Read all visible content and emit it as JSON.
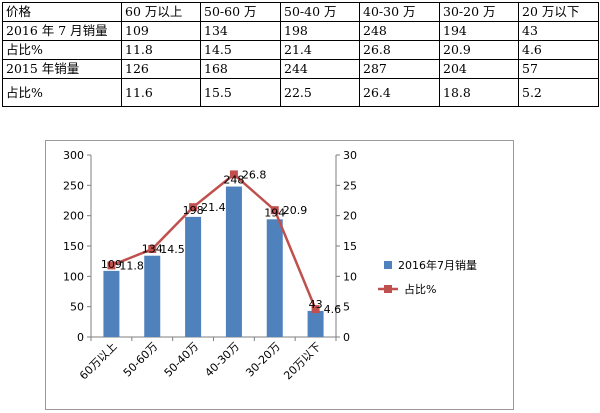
{
  "table": {
    "headers": [
      "价格",
      "60 万以上",
      "50-60 万",
      "50-40 万",
      "40-30 万",
      "30-20 万",
      "20 万以下"
    ],
    "rows": [
      [
        "2016 年 7 月销量",
        "109",
        "134",
        "198",
        "248",
        "194",
        "43"
      ],
      [
        "占比%",
        "11.8",
        "14.5",
        "21.4",
        "26.8",
        "20.9",
        "4.6"
      ],
      [
        "2015 年销量",
        "126",
        "168",
        "244",
        "287",
        "204",
        "57"
      ],
      [
        "占比%",
        "11.6",
        "15.5",
        "22.5",
        "26.4",
        "18.8",
        "5.2"
      ]
    ]
  },
  "chart_data": {
    "type": "bar",
    "categories": [
      "60万以上",
      "50-60万",
      "50-40万",
      "40-30万",
      "30-20万",
      "20万以下"
    ],
    "series": [
      {
        "name": "2016年7月销量",
        "type": "bar",
        "axis": "left",
        "values": [
          109,
          134,
          198,
          248,
          194,
          43
        ],
        "color": "#4f81bd"
      },
      {
        "name": "占比%",
        "type": "line",
        "axis": "right",
        "values": [
          11.8,
          14.5,
          21.4,
          26.8,
          20.9,
          4.6
        ],
        "color": "#c0504d"
      }
    ],
    "ylim": [
      0,
      300
    ],
    "yticks": [
      "0",
      "50",
      "100",
      "150",
      "200",
      "250",
      "300"
    ],
    "y2lim": [
      0,
      30
    ],
    "y2ticks": [
      "0",
      "5",
      "10",
      "15",
      "20",
      "25",
      "30"
    ],
    "grid": false,
    "legend": "right"
  }
}
